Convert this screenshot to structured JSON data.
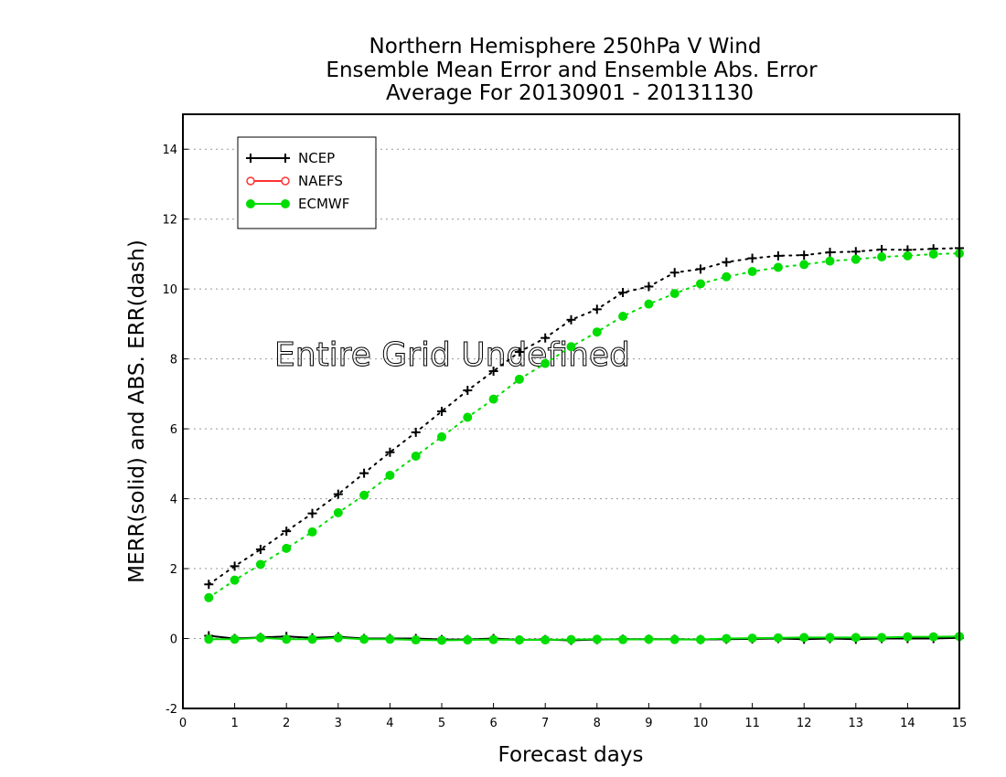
{
  "chart_data": {
    "type": "line",
    "title": [
      "Northern Hemisphere 250hPa V Wind",
      "Ensemble Mean Error and Ensemble Abs. Error",
      "Average For 20130901 - 20131130"
    ],
    "xlabel": "Forecast days",
    "ylabel": "MERR(solid) and ABS. ERR(dash)",
    "xlim": [
      0,
      15
    ],
    "ylim": [
      -2,
      15
    ],
    "xticks": [
      "0",
      "1",
      "2",
      "3",
      "4",
      "5",
      "6",
      "7",
      "8",
      "9",
      "10",
      "11",
      "12",
      "13",
      "14",
      "15"
    ],
    "yticks": [
      "-2",
      "0",
      "2",
      "4",
      "6",
      "8",
      "10",
      "12",
      "14"
    ],
    "grid": "horizontal dotted",
    "legend_position": "top-left",
    "annotation": "Entire Grid Undefined",
    "x": [
      0.5,
      1,
      1.5,
      2,
      2.5,
      3,
      3.5,
      4,
      4.5,
      5,
      5.5,
      6,
      6.5,
      7,
      7.5,
      8,
      8.5,
      9,
      9.5,
      10,
      10.5,
      11,
      11.5,
      12,
      12.5,
      13,
      13.5,
      14,
      14.5,
      15
    ],
    "series": [
      {
        "name": "NCEP",
        "color": "#000000",
        "marker": "plus",
        "merr": [
          0.08,
          0.0,
          0.03,
          0.06,
          0.02,
          0.05,
          0.0,
          0.0,
          0.0,
          -0.03,
          -0.03,
          0.0,
          -0.04,
          -0.03,
          -0.05,
          -0.03,
          -0.02,
          -0.02,
          -0.02,
          -0.03,
          -0.02,
          -0.01,
          0.0,
          -0.02,
          0.0,
          -0.02,
          0.0,
          0.0,
          0.0,
          0.02
        ],
        "abs_err": [
          1.55,
          2.07,
          2.55,
          3.07,
          3.58,
          4.13,
          4.73,
          5.33,
          5.9,
          6.5,
          7.1,
          7.65,
          8.2,
          8.6,
          9.12,
          9.42,
          9.9,
          10.07,
          10.47,
          10.57,
          10.77,
          10.88,
          10.95,
          10.97,
          11.05,
          11.07,
          11.13,
          11.12,
          11.15,
          11.17
        ]
      },
      {
        "name": "NAEFS",
        "color": "#ff3333",
        "marker": "open-circle",
        "merr": [],
        "abs_err": []
      },
      {
        "name": "ECMWF",
        "color": "#00dd00",
        "marker": "filled-circle",
        "merr": [
          -0.02,
          -0.02,
          0.02,
          -0.02,
          -0.02,
          0.02,
          -0.02,
          -0.02,
          -0.04,
          -0.05,
          -0.04,
          -0.03,
          -0.04,
          -0.04,
          -0.03,
          -0.02,
          -0.03,
          -0.02,
          -0.03,
          -0.03,
          0.0,
          0.01,
          0.02,
          0.03,
          0.03,
          0.03,
          0.03,
          0.05,
          0.05,
          0.06
        ],
        "abs_err": [
          1.17,
          1.67,
          2.12,
          2.58,
          3.05,
          3.6,
          4.1,
          4.67,
          5.22,
          5.77,
          6.33,
          6.85,
          7.42,
          7.87,
          8.35,
          8.77,
          9.22,
          9.57,
          9.87,
          10.15,
          10.35,
          10.5,
          10.62,
          10.7,
          10.8,
          10.85,
          10.92,
          10.95,
          11.0,
          11.02
        ]
      }
    ]
  }
}
